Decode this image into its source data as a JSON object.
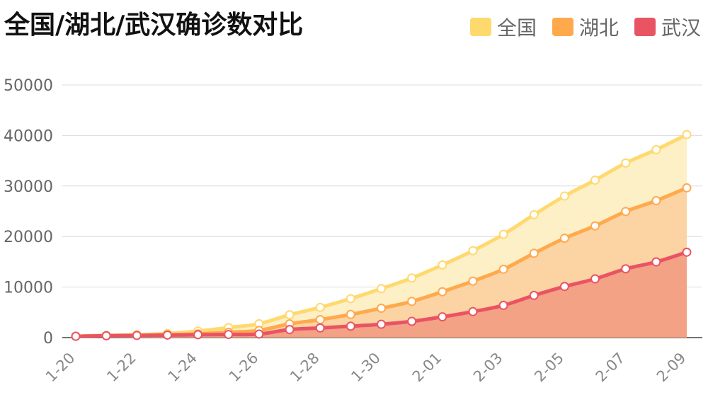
{
  "chart_data": {
    "type": "area",
    "title": "全国/湖北/武汉确诊数对比",
    "x": [
      "1-20",
      "1-21",
      "1-22",
      "1-23",
      "1-24",
      "1-25",
      "1-26",
      "1-27",
      "1-28",
      "1-29",
      "1-30",
      "1-31",
      "2-01",
      "2-02",
      "2-03",
      "2-04",
      "2-05",
      "2-06",
      "2-07",
      "2-08",
      "2-09"
    ],
    "x_tick_labels": [
      "1-20",
      "1-22",
      "1-24",
      "1-26",
      "1-28",
      "1-30",
      "2-01",
      "2-03",
      "2-05",
      "2-07",
      "2-09"
    ],
    "ylim": [
      0,
      50000
    ],
    "y_ticks": [
      0,
      10000,
      20000,
      30000,
      40000,
      50000
    ],
    "y_tick_labels": [
      "0",
      "10000",
      "20000",
      "30000",
      "40000",
      "50000"
    ],
    "legend_position": "top-right",
    "grid": true,
    "series": [
      {
        "name": "全国",
        "color": "#ffd96e",
        "fill": "#fdefc6",
        "values": [
          291,
          440,
          571,
          830,
          1287,
          1975,
          2744,
          4515,
          5974,
          7711,
          9692,
          11791,
          14380,
          17205,
          20438,
          24324,
          28018,
          31161,
          34546,
          37198,
          40171
        ]
      },
      {
        "name": "湖北",
        "color": "#ffa94d",
        "fill": "#fcd3a3",
        "values": [
          270,
          375,
          444,
          549,
          729,
          1052,
          1423,
          2714,
          3554,
          4586,
          5806,
          7153,
          9074,
          11177,
          13522,
          16678,
          19665,
          22112,
          24953,
          27100,
          29631
        ]
      },
      {
        "name": "武汉",
        "color": "#e95463",
        "fill": "#f3a285",
        "values": [
          258,
          363,
          425,
          495,
          572,
          618,
          698,
          1590,
          1905,
          2261,
          2639,
          3215,
          4109,
          5142,
          6384,
          8351,
          10117,
          11618,
          13603,
          14982,
          16902
        ]
      }
    ]
  }
}
